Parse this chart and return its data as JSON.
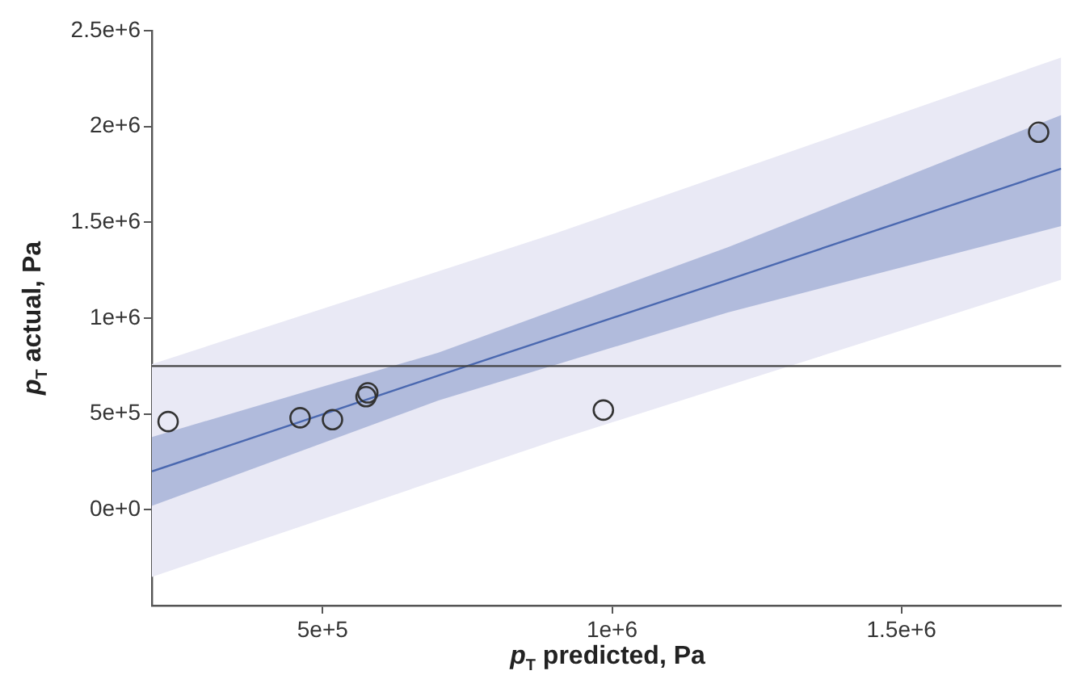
{
  "chart_data": {
    "type": "scatter",
    "xlabel": "p$_{T}$ predicted, Pa",
    "ylabel": "p$_{T}$ actual, Pa",
    "xlim": [
      205000,
      1776000
    ],
    "ylim": [
      -500000,
      2500000
    ],
    "xticks": [
      {
        "value": 500000,
        "label": "5e+5"
      },
      {
        "value": 1000000,
        "label": "1e+6"
      },
      {
        "value": 1500000,
        "label": "1.5e+6"
      }
    ],
    "yticks": [
      {
        "value": 0,
        "label": "0e+0"
      },
      {
        "value": 500000,
        "label": "5e+5"
      },
      {
        "value": 1000000,
        "label": "1e+6"
      },
      {
        "value": 1500000,
        "label": "1.5e+6"
      },
      {
        "value": 2000000,
        "label": "2e+6"
      },
      {
        "value": 2500000,
        "label": "2.5e+6"
      }
    ],
    "grid": false,
    "marker": "circle",
    "ref_lines": [
      {
        "axis": "y",
        "value": 750000,
        "color": "#444444"
      }
    ],
    "series": [
      {
        "type": "line",
        "color": "#e9e9f5",
        "x": [
          205000,
          900000,
          1776000
        ],
        "values": [
          null,
          null,
          null
        ],
        "lower": [
          -350000,
          360000,
          1200000
        ],
        "upper": [
          760000,
          1440000,
          2360000
        ],
        "marker": "none"
      },
      {
        "type": "line",
        "color": "#4a68b0",
        "x": [
          205000,
          700000,
          1200000,
          1776000
        ],
        "values": [
          200000,
          700000,
          1200000,
          1780000
        ],
        "lower": [
          20000,
          570000,
          1030000,
          1480000
        ],
        "upper": [
          380000,
          820000,
          1370000,
          2060000
        ],
        "marker": "none"
      },
      {
        "color": "#333333",
        "x": [
          233000,
          461000,
          517000,
          575000,
          578000,
          985000,
          1737000
        ],
        "values": [
          460000,
          480000,
          470000,
          590000,
          610000,
          520000,
          1970000
        ]
      }
    ]
  }
}
